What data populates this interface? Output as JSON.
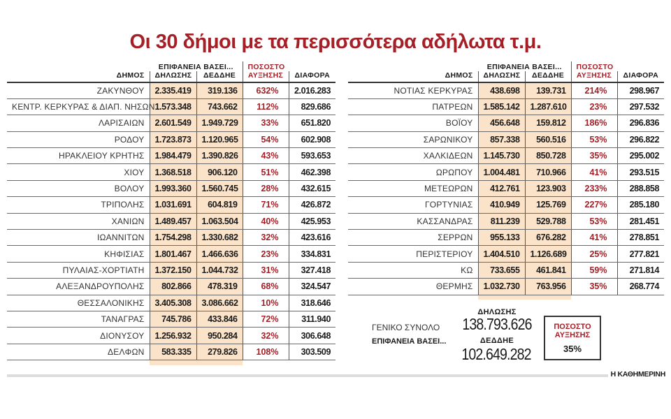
{
  "title": "Οι 30 δήμοι με τα περισσότερα αδήλωτα τ.μ.",
  "headers": {
    "group": "ΕΠΙΦΑΝΕΙΑ ΒΑΣΕΙ...",
    "municipality": "ΔΗΜΟΣ",
    "declaration": "ΔΗΛΩΣΗΣ",
    "deddie": "ΔΕΔΔΗΕ",
    "increase_line1": "ΠΟΣΟΣΤΟ",
    "increase_line2": "ΑΥΞΗΣΗΣ",
    "difference": "ΔΙΑΦΟΡΑ"
  },
  "left_rows": [
    [
      "ΖΑΚΥΝΘΟΥ",
      "2.335.419",
      "319.136",
      "632%",
      "2.016.283"
    ],
    [
      "ΚΕΝΤΡ. ΚΕΡΚΥΡΑΣ & ΔΙΑΠ. ΝΗΣΩΝ",
      "1.573.348",
      "743.662",
      "112%",
      "829.686"
    ],
    [
      "ΛΑΡΙΣΑΙΩΝ",
      "2.601.549",
      "1.949.729",
      "33%",
      "651.820"
    ],
    [
      "ΡΟΔΟΥ",
      "1.723.873",
      "1.120.965",
      "54%",
      "602.908"
    ],
    [
      "ΗΡΑΚΛΕΙΟΥ ΚΡΗΤΗΣ",
      "1.984.479",
      "1.390.826",
      "43%",
      "593.653"
    ],
    [
      "ΧΙΟΥ",
      "1.368.518",
      "906.120",
      "51%",
      "462.398"
    ],
    [
      "ΒΟΛΟΥ",
      "1.993.360",
      "1.560.745",
      "28%",
      "432.615"
    ],
    [
      "ΤΡΙΠΟΛΗΣ",
      "1.031.691",
      "604.819",
      "71%",
      "426.872"
    ],
    [
      "ΧΑΝΙΩΝ",
      "1.489.457",
      "1.063.504",
      "40%",
      "425.953"
    ],
    [
      "ΙΩΑΝΝΙΤΩΝ",
      "1.754.298",
      "1.330.682",
      "32%",
      "423.616"
    ],
    [
      "ΚΗΦΙΣΙΑΣ",
      "1.801.467",
      "1.466.636",
      "23%",
      "334.831"
    ],
    [
      "ΠΥΛΑΙΑΣ-ΧΟΡΤΙΑΤΗ",
      "1.372.150",
      "1.044.732",
      "31%",
      "327.418"
    ],
    [
      "ΑΛΕΞΑΝΔΡΟΥΠΟΛΗΣ",
      "802.866",
      "478.319",
      "68%",
      "324.547"
    ],
    [
      "ΘΕΣΣΑΛΟΝΙΚΗΣ",
      "3.405.308",
      "3.086.662",
      "10%",
      "318.646"
    ],
    [
      "ΤΑΝΑΓΡΑΣ",
      "745.786",
      "433.846",
      "72%",
      "311.940"
    ],
    [
      "ΔΙΟΝΥΣΟΥ",
      "1.256.932",
      "950.284",
      "32%",
      "306.648"
    ],
    [
      "ΔΕΛΦΩΝ",
      "583.335",
      "279.826",
      "108%",
      "303.509"
    ]
  ],
  "right_rows": [
    [
      "ΝΟΤΙΑΣ ΚΕΡΚΥΡΑΣ",
      "438.698",
      "139.731",
      "214%",
      "298.967"
    ],
    [
      "ΠΑΤΡΕΩΝ",
      "1.585.142",
      "1.287.610",
      "23%",
      "297.532"
    ],
    [
      "ΒΟΪΟΥ",
      "456.648",
      "159.812",
      "186%",
      "296.836"
    ],
    [
      "ΣΑΡΩΝΙΚΟΥ",
      "857.338",
      "560.516",
      "53%",
      "296.822"
    ],
    [
      "ΧΑΛΚΙΔΕΩΝ",
      "1.145.730",
      "850.728",
      "35%",
      "295.002"
    ],
    [
      "ΩΡΩΠΟΥ",
      "1.004.481",
      "710.966",
      "41%",
      "293.515"
    ],
    [
      "ΜΕΤΕΩΡΩΝ",
      "412.761",
      "123.903",
      "233%",
      "288.858"
    ],
    [
      "ΓΟΡΤΥΝΙΑΣ",
      "410.949",
      "125.769",
      "227%",
      "285.180"
    ],
    [
      "ΚΑΣΣΑΝΔΡΑΣ",
      "811.239",
      "529.788",
      "53%",
      "281.451"
    ],
    [
      "ΣΕΡΡΩΝ",
      "955.133",
      "676.282",
      "41%",
      "278.851"
    ],
    [
      "ΠΕΡΙΣΤΕΡΙΟΥ",
      "1.404.510",
      "1.126.689",
      "25%",
      "277.821"
    ],
    [
      "ΚΩ",
      "733.655",
      "461.841",
      "59%",
      "271.814"
    ],
    [
      "ΘΕΡΜΗΣ",
      "1.032.730",
      "763.956",
      "35%",
      "268.774"
    ]
  ],
  "summary": {
    "label1": "ΓΕΝΙΚΟ ΣΥΝΟΛΟ",
    "label2": "ΕΠΙΦΑΝΕΙΑ ΒΑΣΕΙ...",
    "declaration_label": "ΔΗΛΩΣΗΣ",
    "declaration_value": "138.793.626",
    "deddie_label": "ΔΕΔΔΗΕ",
    "deddie_value": "102.649.282",
    "increase_line1": "ΠΟΣΟΣΤΟ",
    "increase_line2": "ΑΥΞΗΣΗΣ",
    "increase_value": "35%"
  },
  "brand": "Η ΚΑΘΗΜΕΡΙΝΗ",
  "colors": {
    "accent": "#a41f26",
    "highlight": "#fbe3c9"
  }
}
